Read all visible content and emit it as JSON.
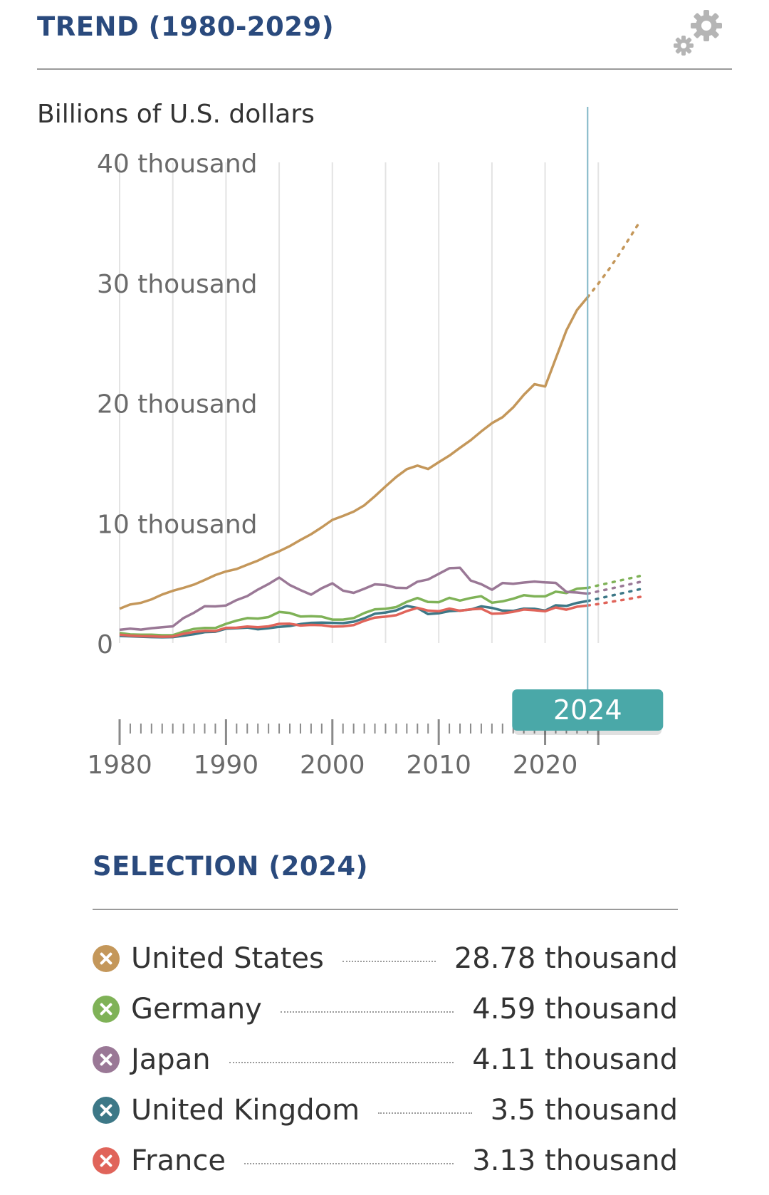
{
  "header": {
    "title": "TREND (1980-2029)",
    "settings_icon": "gear-icon"
  },
  "chart": {
    "unit_label": "Billions of U.S. dollars",
    "selected_year_badge": "2024"
  },
  "chart_data": {
    "type": "line",
    "title": "TREND (1980-2029)",
    "ylabel": "Billions of U.S. dollars",
    "xlim": [
      1980,
      2029
    ],
    "ylim": [
      0,
      40000
    ],
    "y_ticks": [
      {
        "value": 40000,
        "label": "40 thousand"
      },
      {
        "value": 30000,
        "label": "30 thousand"
      },
      {
        "value": 20000,
        "label": "20 thousand"
      },
      {
        "value": 10000,
        "label": "10 thousand"
      },
      {
        "value": 0,
        "label": "0"
      }
    ],
    "x_ticks": [
      {
        "value": 1980,
        "label": "1980"
      },
      {
        "value": 1990,
        "label": "1990"
      },
      {
        "value": 2000,
        "label": "2000"
      },
      {
        "value": 2010,
        "label": "2010"
      },
      {
        "value": 2020,
        "label": "2020"
      }
    ],
    "grid": true,
    "selected_year": 2024,
    "actual_through": 2024,
    "series": [
      {
        "name": "United States",
        "color": "#c4975a",
        "x": [
          1980,
          1981,
          1982,
          1983,
          1984,
          1985,
          1986,
          1987,
          1988,
          1989,
          1990,
          1991,
          1992,
          1993,
          1994,
          1995,
          1996,
          1997,
          1998,
          1999,
          2000,
          2001,
          2002,
          2003,
          2004,
          2005,
          2006,
          2007,
          2008,
          2009,
          2010,
          2011,
          2012,
          2013,
          2014,
          2015,
          2016,
          2017,
          2018,
          2019,
          2020,
          2021,
          2022,
          2023,
          2024,
          2025,
          2026,
          2027,
          2028,
          2029
        ],
        "y": [
          2860,
          3210,
          3350,
          3640,
          4040,
          4350,
          4590,
          4870,
          5250,
          5660,
          5960,
          6160,
          6520,
          6860,
          7290,
          7640,
          8070,
          8580,
          9060,
          9630,
          10250,
          10580,
          10940,
          11460,
          12220,
          13040,
          13820,
          14470,
          14770,
          14480,
          15050,
          15600,
          16250,
          16880,
          17610,
          18300,
          18800,
          19610,
          20660,
          21540,
          21350,
          23680,
          26010,
          27720,
          28780,
          29900,
          31100,
          32400,
          33800,
          35200
        ]
      },
      {
        "name": "Germany",
        "color": "#7fb257",
        "x": [
          1980,
          1981,
          1982,
          1983,
          1984,
          1985,
          1986,
          1987,
          1988,
          1989,
          1990,
          1991,
          1992,
          1993,
          1994,
          1995,
          1996,
          1997,
          1998,
          1999,
          2000,
          2001,
          2002,
          2003,
          2004,
          2005,
          2006,
          2007,
          2008,
          2009,
          2010,
          2011,
          2012,
          2013,
          2014,
          2015,
          2016,
          2017,
          2018,
          2019,
          2020,
          2021,
          2022,
          2023,
          2024,
          2025,
          2026,
          2027,
          2028,
          2029
        ],
        "y": [
          850,
          720,
          700,
          700,
          650,
          660,
          950,
          1180,
          1260,
          1250,
          1600,
          1870,
          2080,
          2040,
          2160,
          2590,
          2500,
          2210,
          2240,
          2200,
          1950,
          1950,
          2080,
          2500,
          2810,
          2850,
          2990,
          3430,
          3750,
          3420,
          3400,
          3760,
          3540,
          3750,
          3900,
          3360,
          3470,
          3690,
          3980,
          3890,
          3890,
          4280,
          4160,
          4530,
          4590,
          4800,
          5000,
          5200,
          5400,
          5600
        ]
      },
      {
        "name": "Japan",
        "color": "#9a7896",
        "x": [
          1980,
          1981,
          1982,
          1983,
          1984,
          1985,
          1986,
          1987,
          1988,
          1989,
          1990,
          1991,
          1992,
          1993,
          1994,
          1995,
          1996,
          1997,
          1998,
          1999,
          2000,
          2001,
          2002,
          2003,
          2004,
          2005,
          2006,
          2007,
          2008,
          2009,
          2010,
          2011,
          2012,
          2013,
          2014,
          2015,
          2016,
          2017,
          2018,
          2019,
          2020,
          2021,
          2022,
          2023,
          2024,
          2025,
          2026,
          2027,
          2028,
          2029
        ],
        "y": [
          1100,
          1200,
          1120,
          1240,
          1320,
          1390,
          2080,
          2530,
          3070,
          3050,
          3130,
          3580,
          3910,
          4450,
          4910,
          5450,
          4830,
          4410,
          4030,
          4560,
          4970,
          4370,
          4180,
          4520,
          4890,
          4830,
          4600,
          4580,
          5110,
          5290,
          5760,
          6230,
          6270,
          5210,
          4900,
          4440,
          5000,
          4930,
          5040,
          5120,
          5050,
          5010,
          4260,
          4210,
          4110,
          4300,
          4500,
          4700,
          4900,
          5100
        ]
      },
      {
        "name": "United Kingdom",
        "color": "#3d7887",
        "x": [
          1980,
          1981,
          1982,
          1983,
          1984,
          1985,
          1986,
          1987,
          1988,
          1989,
          1990,
          1991,
          1992,
          1993,
          1994,
          1995,
          1996,
          1997,
          1998,
          1999,
          2000,
          2001,
          2002,
          2003,
          2004,
          2005,
          2006,
          2007,
          2008,
          2009,
          2010,
          2011,
          2012,
          2013,
          2014,
          2015,
          2016,
          2017,
          2018,
          2019,
          2020,
          2021,
          2022,
          2023,
          2024,
          2025,
          2026,
          2027,
          2028,
          2029
        ],
        "y": [
          600,
          560,
          530,
          500,
          480,
          500,
          610,
          740,
          910,
          940,
          1200,
          1240,
          1290,
          1150,
          1240,
          1350,
          1420,
          1580,
          1680,
          1700,
          1680,
          1660,
          1780,
          2060,
          2440,
          2540,
          2720,
          3090,
          2920,
          2410,
          2480,
          2660,
          2700,
          2790,
          3060,
          2930,
          2700,
          2680,
          2870,
          2850,
          2700,
          3140,
          3090,
          3340,
          3500,
          3700,
          3900,
          4100,
          4300,
          4500
        ]
      },
      {
        "name": "France",
        "color": "#e0645a",
        "x": [
          1980,
          1981,
          1982,
          1983,
          1984,
          1985,
          1986,
          1987,
          1988,
          1989,
          1990,
          1991,
          1992,
          1993,
          1994,
          1995,
          1996,
          1997,
          1998,
          1999,
          2000,
          2001,
          2002,
          2003,
          2004,
          2005,
          2006,
          2007,
          2008,
          2009,
          2010,
          2011,
          2012,
          2013,
          2014,
          2015,
          2016,
          2017,
          2018,
          2019,
          2020,
          2021,
          2022,
          2023,
          2024,
          2025,
          2026,
          2027,
          2028,
          2029
        ],
        "y": [
          700,
          620,
          580,
          560,
          530,
          550,
          770,
          930,
          1020,
          1010,
          1270,
          1280,
          1380,
          1320,
          1390,
          1600,
          1610,
          1460,
          1510,
          1490,
          1370,
          1390,
          1500,
          1850,
          2120,
          2200,
          2320,
          2660,
          2930,
          2700,
          2650,
          2870,
          2690,
          2810,
          2860,
          2440,
          2470,
          2600,
          2790,
          2730,
          2650,
          2960,
          2780,
          3030,
          3130,
          3250,
          3400,
          3550,
          3700,
          3850
        ]
      }
    ]
  },
  "selection": {
    "title": "SELECTION (2024)",
    "items": [
      {
        "country": "United States",
        "value": "28.78 thousand",
        "color": "#c4975a"
      },
      {
        "country": "Germany",
        "value": "4.59 thousand",
        "color": "#7fb257"
      },
      {
        "country": "Japan",
        "value": "4.11 thousand",
        "color": "#9a7896"
      },
      {
        "country": "United Kingdom",
        "value": "3.5 thousand",
        "color": "#3d7887"
      },
      {
        "country": "France",
        "value": "3.13 thousand",
        "color": "#e0645a"
      }
    ]
  }
}
